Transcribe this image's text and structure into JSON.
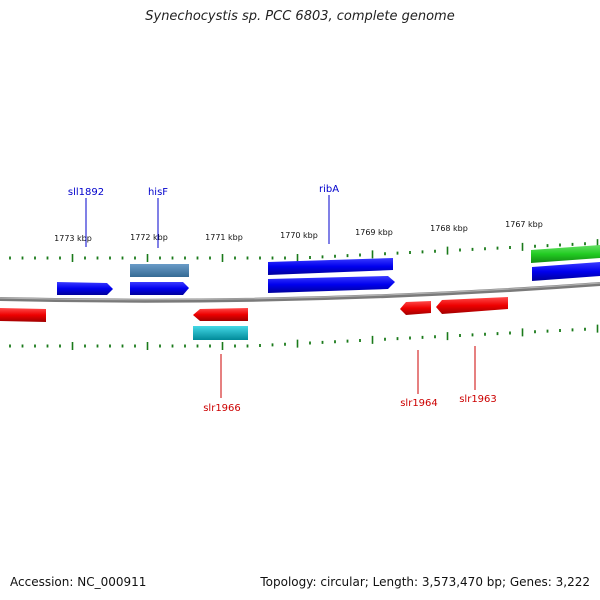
{
  "title": "Synechocystis sp. PCC 6803, complete genome",
  "footer": {
    "accession": "Accession: NC_000911",
    "stats": "Topology: circular; Length: 3,573,470 bp; Genes: 3,222"
  },
  "ticks": [
    {
      "label": "1773 kbp"
    },
    {
      "label": "1772 kbp"
    },
    {
      "label": "1771 kbp"
    },
    {
      "label": "1770 kbp"
    },
    {
      "label": "1769 kbp"
    },
    {
      "label": "1768 kbp"
    },
    {
      "label": "1767 kbp"
    }
  ],
  "gene_labels": [
    {
      "name": "sll1892",
      "strand": "forward"
    },
    {
      "name": "hisF",
      "strand": "forward"
    },
    {
      "name": "ribA",
      "strand": "forward"
    },
    {
      "name": "slr1966",
      "strand": "reverse"
    },
    {
      "name": "slr1964",
      "strand": "reverse"
    },
    {
      "name": "slr1963",
      "strand": "reverse"
    }
  ],
  "colors": {
    "forward_gene": "#0000ee",
    "reverse_gene": "#ee0000",
    "rna_gene": "#22cc22",
    "steelblue_feature": "#4682b4",
    "cyan_feature": "#00bbcc",
    "tick": "#1a7a1a",
    "backbone": "#808080"
  }
}
